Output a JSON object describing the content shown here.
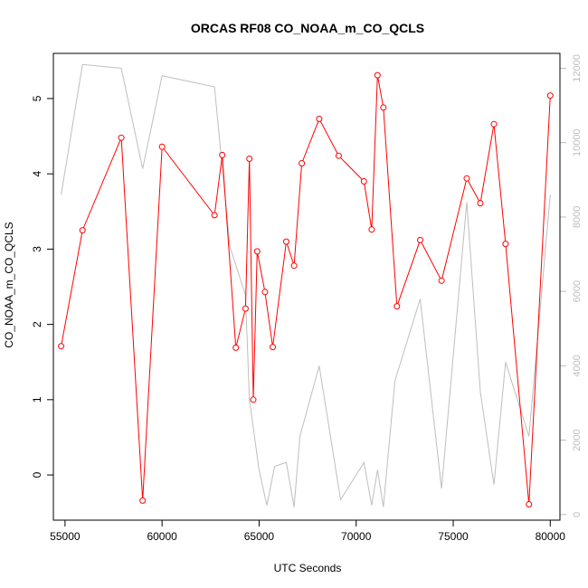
{
  "chart_data": {
    "type": "line",
    "title": "ORCAS RF08 CO_NOAA_m_CO_QCLS",
    "xlabel": "UTC Seconds",
    "ylabel": "CO_NOAA_m_CO_QCLS",
    "xlim": [
      54400,
      80500
    ],
    "ylim": [
      -0.6,
      5.6
    ],
    "y2lim": [
      -150,
      12400
    ],
    "x_ticks": [
      55000,
      60000,
      65000,
      70000,
      75000,
      80000
    ],
    "y_ticks": [
      0,
      1,
      2,
      3,
      4,
      5
    ],
    "y2_ticks": [
      0,
      2000,
      4000,
      6000,
      8000,
      10000,
      12000
    ],
    "x_tick_labels": [
      "55000",
      "60000",
      "65000",
      "70000",
      "75000",
      "80000"
    ],
    "y_tick_labels": [
      "0",
      "1",
      "2",
      "3",
      "4",
      "5"
    ],
    "y2_tick_labels": [
      "0",
      "2000",
      "4000",
      "6000",
      "8000",
      "10000",
      "12000"
    ],
    "series": [
      {
        "axis": "left",
        "color": "#ff0000",
        "marker": "open-circle",
        "x": [
          54800,
          55900,
          57900,
          59000,
          60000,
          62700,
          63100,
          63800,
          64300,
          64500,
          64700,
          64900,
          65300,
          65700,
          66400,
          66800,
          67200,
          68100,
          69100,
          70400,
          70800,
          71100,
          71400,
          72100,
          73300,
          74400,
          75700,
          76400,
          77100,
          77700,
          78900,
          80000
        ],
        "y": [
          1.71,
          3.25,
          4.48,
          -0.34,
          4.36,
          3.45,
          4.25,
          1.69,
          2.21,
          4.2,
          1.0,
          2.97,
          2.43,
          1.7,
          3.1,
          2.78,
          4.14,
          4.73,
          4.24,
          3.9,
          3.26,
          5.31,
          4.88,
          2.24,
          3.12,
          2.58,
          3.94,
          3.61,
          4.66,
          3.07,
          -0.39,
          5.04
        ]
      },
      {
        "axis": "right",
        "color": "#bebebe",
        "marker": "none",
        "x": [
          54800,
          55900,
          57900,
          59000,
          60000,
          62700,
          63500,
          64300,
          64500,
          65000,
          65400,
          65800,
          66400,
          66800,
          67100,
          68100,
          69200,
          70400,
          70800,
          71100,
          71400,
          72000,
          73300,
          74400,
          75700,
          76400,
          77100,
          77700,
          78900,
          80000
        ],
        "y": [
          8600,
          12100,
          12000,
          9300,
          11800,
          11500,
          7200,
          5900,
          3100,
          1200,
          250,
          1300,
          1400,
          200,
          2100,
          4000,
          400,
          1400,
          250,
          1200,
          200,
          3600,
          5800,
          700,
          8400,
          3300,
          800,
          4100,
          2100,
          8600
        ]
      }
    ]
  }
}
